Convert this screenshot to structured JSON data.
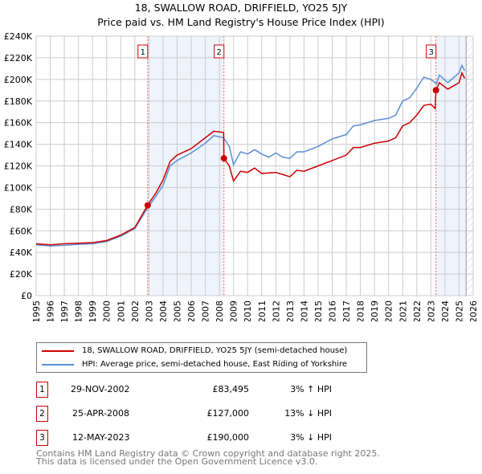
{
  "title": "18, SWALLOW ROAD, DRIFFIELD, YO25 5JY",
  "subtitle": "Price paid vs. HM Land Registry's House Price Index (HPI)",
  "chart_data": {
    "type": "line",
    "title": "18, SWALLOW ROAD, DRIFFIELD, YO25 5JY",
    "subtitle": "Price paid vs. HM Land Registry's House Price Index (HPI)",
    "xlim": [
      1995,
      2026
    ],
    "ylim": [
      0,
      240000
    ],
    "x_ticks": [
      "1995",
      "1996",
      "1997",
      "1998",
      "1999",
      "2000",
      "2001",
      "2002",
      "2003",
      "2004",
      "2005",
      "2006",
      "2007",
      "2008",
      "2009",
      "2010",
      "2011",
      "2012",
      "2013",
      "2014",
      "2015",
      "2016",
      "2017",
      "2018",
      "2019",
      "2020",
      "2021",
      "2022",
      "2023",
      "2024",
      "2025",
      "2026"
    ],
    "y_ticks": [
      "£0",
      "£20K",
      "£40K",
      "£60K",
      "£80K",
      "£100K",
      "£120K",
      "£140K",
      "£160K",
      "£180K",
      "£200K",
      "£220K",
      "£240K"
    ],
    "grid": true,
    "series": [
      {
        "name": "18, SWALLOW ROAD, DRIFFIELD, YO25 5JY (semi-detached house)",
        "color": "#cc0000",
        "x": [
          1995,
          1996,
          1997,
          1998,
          1999,
          2000,
          2001,
          2002,
          2002.9,
          2003.5,
          2004,
          2004.5,
          2005,
          2006,
          2007,
          2007.6,
          2008.3,
          2008.32,
          2008.7,
          2009.0,
          2009.5,
          2010,
          2010.5,
          2011,
          2012,
          2012.5,
          2013,
          2013.5,
          2014,
          2015,
          2016,
          2017,
          2017.5,
          2018,
          2019,
          2020,
          2020.5,
          2021,
          2021.5,
          2022,
          2022.5,
          2023,
          2023.3,
          2023.36,
          2023.6,
          2024.2,
          2025,
          2025.2,
          2025.4
        ],
        "y": [
          48000,
          47000,
          48000,
          48500,
          49000,
          51000,
          56000,
          63000,
          83495,
          95000,
          107000,
          124000,
          130000,
          136000,
          146000,
          152000,
          151000,
          127000,
          120000,
          106000,
          115000,
          114000,
          118000,
          113000,
          114000,
          112000,
          110000,
          116000,
          115000,
          120000,
          125000,
          130000,
          137000,
          137000,
          141000,
          143000,
          146000,
          157000,
          160000,
          167000,
          176000,
          177000,
          173000,
          190000,
          197000,
          191000,
          197000,
          206000,
          201000
        ]
      },
      {
        "name": "HPI: Average price, semi-detached house, East Riding of Yorkshire",
        "color": "#5b8fd4",
        "x": [
          1995,
          1996,
          1997,
          1998,
          1999,
          2000,
          2001,
          2002,
          2002.9,
          2003.5,
          2004,
          2004.5,
          2005,
          2006,
          2007,
          2007.6,
          2008.3,
          2008.7,
          2009.0,
          2009.5,
          2010,
          2010.5,
          2011,
          2011.5,
          2012,
          2012.5,
          2013,
          2013.5,
          2014,
          2015,
          2016,
          2017,
          2017.5,
          2018,
          2019,
          2020,
          2020.5,
          2021,
          2021.5,
          2022,
          2022.5,
          2023,
          2023.4,
          2023.6,
          2024.2,
          2025,
          2025.2,
          2025.4
        ],
        "y": [
          47000,
          46000,
          46500,
          47500,
          48000,
          50000,
          55000,
          62000,
          81000,
          92000,
          102000,
          120000,
          125000,
          132000,
          141000,
          148000,
          146000,
          138000,
          121000,
          133000,
          131000,
          135000,
          131000,
          128000,
          132000,
          128000,
          127000,
          133000,
          133000,
          138000,
          145000,
          149000,
          157000,
          158000,
          162000,
          164000,
          167000,
          180000,
          183000,
          192000,
          202000,
          200000,
          196000,
          204000,
          197000,
          206000,
          213000,
          208000
        ]
      }
    ],
    "sales": [
      {
        "label": "1",
        "x": 2002.91,
        "y": 83495
      },
      {
        "label": "2",
        "x": 2008.32,
        "y": 127000
      },
      {
        "label": "3",
        "x": 2023.36,
        "y": 190000
      }
    ],
    "shaded": [
      [
        2002.91,
        2008.32
      ],
      [
        2023.36,
        2025.5
      ]
    ],
    "hatched_from": 2025.5
  },
  "legend": {
    "red": "18, SWALLOW ROAD, DRIFFIELD, YO25 5JY (semi-detached house)",
    "blue": "HPI: Average price, semi-detached house, East Riding of Yorkshire"
  },
  "transactions": [
    {
      "num": "1",
      "date": "29-NOV-2002",
      "price": "£83,495",
      "hpi": "3% ↑ HPI"
    },
    {
      "num": "2",
      "date": "25-APR-2008",
      "price": "£127,000",
      "hpi": "13% ↓ HPI"
    },
    {
      "num": "3",
      "date": "12-MAY-2023",
      "price": "£190,000",
      "hpi": "3% ↓ HPI"
    }
  ],
  "footer": {
    "line1": "Contains HM Land Registry data © Crown copyright and database right 2025.",
    "line2": "This data is licensed under the Open Government Licence v3.0."
  }
}
